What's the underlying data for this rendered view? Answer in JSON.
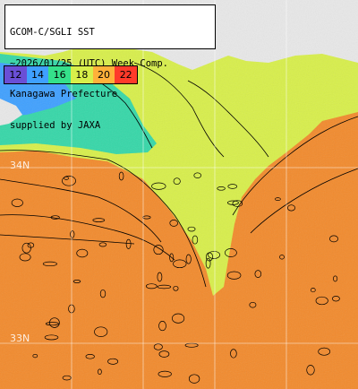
{
  "title_lines": [
    "GCOM-C/SGLI SST",
    "~2026/01/25 (UTC) Week Comp.",
    "Kanagawa Prefecture",
    "supplied by JAXA"
  ],
  "colorbar": {
    "labels": [
      "12",
      "14",
      "16",
      "18",
      "20",
      "22"
    ],
    "colors": [
      "#6a4fd6",
      "#3fa0ff",
      "#35e08a",
      "#d8ef4a",
      "#ffb13a",
      "#ff3a2a"
    ]
  },
  "lat_labels": [
    "34N",
    "33N"
  ],
  "colors": {
    "land": "#e8e8e8",
    "warm_sea": "#f28a2c",
    "mid_sea": "#d8ef4a",
    "cool_sea": "#35d7a8",
    "contour": "#000000"
  }
}
